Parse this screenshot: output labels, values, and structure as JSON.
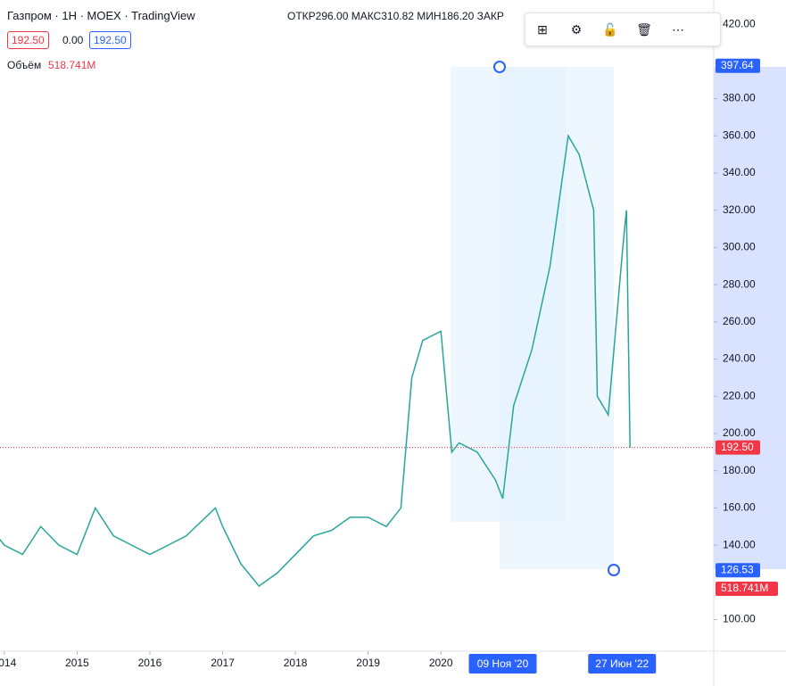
{
  "header": {
    "symbol": "Газпром · 1H · MOEX · TradingView",
    "ohlc": "ОТКР296.00 МАКС310.82 МИН186.20 ЗАКР",
    "bid": "192.50",
    "spread": "0.00",
    "ask": "192.50",
    "volume_label": "Объём",
    "volume_value": "518.741M"
  },
  "chart_data": {
    "type": "line",
    "color": "#26a69a",
    "x": [
      2013.9,
      2014.0,
      2014.25,
      2014.5,
      2014.75,
      2015.0,
      2015.25,
      2015.5,
      2015.75,
      2016.0,
      2016.25,
      2016.5,
      2016.9,
      2017.0,
      2017.25,
      2017.5,
      2017.75,
      2018.0,
      2018.25,
      2018.5,
      2018.75,
      2019.0,
      2019.25,
      2019.45,
      2019.6,
      2019.75,
      2020.0,
      2020.15,
      2020.25,
      2020.5,
      2020.75,
      2020.85,
      2021.0,
      2021.25,
      2021.5,
      2021.75,
      2021.9,
      2022.1,
      2022.15,
      2022.3,
      2022.5,
      2022.55,
      2022.6
    ],
    "values": [
      145,
      140,
      135,
      150,
      140,
      135,
      160,
      145,
      140,
      135,
      140,
      145,
      160,
      150,
      130,
      118,
      125,
      135,
      145,
      148,
      155,
      155,
      150,
      160,
      230,
      250,
      255,
      190,
      195,
      190,
      175,
      165,
      215,
      245,
      290,
      360,
      350,
      320,
      220,
      210,
      300,
      320,
      192.5
    ],
    "xlim": [
      2013.94,
      2023.75
    ],
    "xticks": [
      2014,
      2015,
      2016,
      2017,
      2018,
      2019,
      2020
    ],
    "ylim": [
      83,
      433
    ],
    "yticks": [
      {
        "value": 100,
        "label": "100.00"
      },
      {
        "value": 140,
        "label": "140.00"
      },
      {
        "value": 160,
        "label": "160.00"
      },
      {
        "value": 180,
        "label": "180.00"
      },
      {
        "value": 200,
        "label": "200.00"
      },
      {
        "value": 220,
        "label": "220.00"
      },
      {
        "value": 240,
        "label": "240.00"
      },
      {
        "value": 260,
        "label": "260.00"
      },
      {
        "value": 280,
        "label": "280.00"
      },
      {
        "value": 300,
        "label": "300.00"
      },
      {
        "value": 320,
        "label": "320.00"
      },
      {
        "value": 340,
        "label": "340.00"
      },
      {
        "value": 360,
        "label": "360.00"
      },
      {
        "value": 380,
        "label": "380.00"
      },
      {
        "value": 420,
        "label": "420.00"
      }
    ],
    "price_labels": [
      {
        "value": 397.64,
        "label": "397.64",
        "color": "#2962ff"
      },
      {
        "value": 192.5,
        "label": "192.50",
        "color": "#f23645"
      },
      {
        "value": 126.53,
        "label": "126.53",
        "color": "#2962ff"
      }
    ],
    "volume_marker": {
      "label": "518.741M",
      "color": "#f23645"
    },
    "x_markers": [
      {
        "value": 2020.85,
        "label": "09 Ноя '20"
      },
      {
        "value": 2022.49,
        "label": "27 Июн '22"
      }
    ]
  }
}
